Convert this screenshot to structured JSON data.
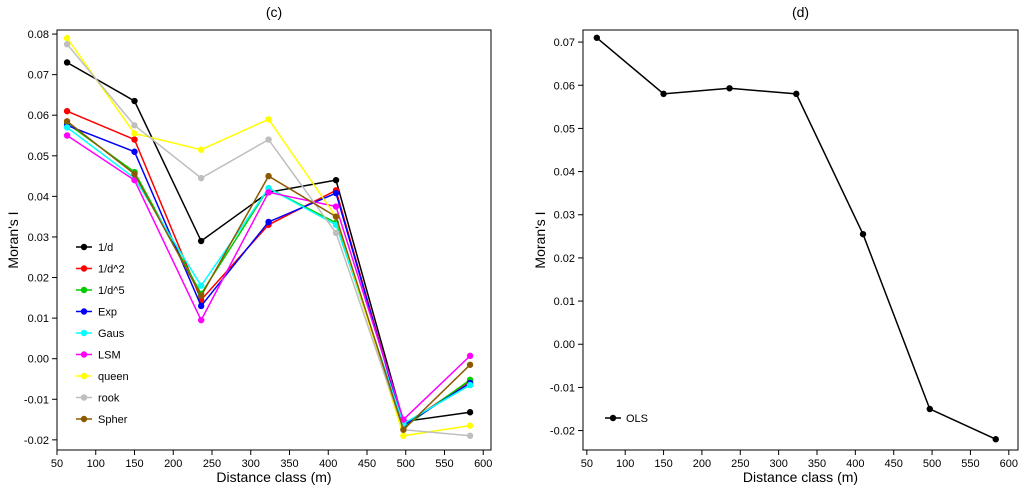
{
  "chart_data": [
    {
      "type": "line",
      "title": "(c)",
      "xlabel": "Distance class (m)",
      "ylabel": "Moran's I",
      "xlim": [
        50,
        610
      ],
      "ylim": [
        -0.0225,
        0.081
      ],
      "xticks": [
        50,
        100,
        150,
        200,
        250,
        300,
        350,
        400,
        450,
        500,
        550,
        600
      ],
      "xtick_labels": [
        "50",
        "100",
        "150",
        "200",
        "250",
        "300",
        "350",
        "400",
        "450",
        "500",
        "550",
        "600"
      ],
      "yticks": [
        -0.02,
        -0.01,
        0,
        0.01,
        0.02,
        0.03,
        0.04,
        0.05,
        0.06,
        0.07,
        0.08
      ],
      "ytick_labels": [
        "-0.02",
        "-0.01",
        "0.00",
        "0.01",
        "0.02",
        "0.03",
        "0.04",
        "0.05",
        "0.06",
        "0.07",
        "0.08"
      ],
      "legend_position": "left",
      "x": [
        63,
        150,
        236,
        323,
        410,
        497,
        583
      ],
      "series": [
        {
          "name": "1/d",
          "color": "#000000",
          "values": [
            0.073,
            0.0635,
            0.029,
            0.041,
            0.044,
            -0.0155,
            -0.0132
          ]
        },
        {
          "name": "1/d^2",
          "color": "#ff0000",
          "values": [
            0.061,
            0.054,
            0.0145,
            0.033,
            0.0415,
            -0.0165,
            -0.0055
          ]
        },
        {
          "name": "1/d^5",
          "color": "#00cc00",
          "values": [
            0.058,
            0.046,
            0.016,
            0.042,
            0.0335,
            -0.017,
            -0.0052
          ]
        },
        {
          "name": "Exp",
          "color": "#0000ff",
          "values": [
            0.0575,
            0.051,
            0.013,
            0.0337,
            0.0408,
            -0.0165,
            -0.006
          ]
        },
        {
          "name": "Gaus",
          "color": "#00ffff",
          "values": [
            0.057,
            0.0445,
            0.018,
            0.042,
            0.033,
            -0.016,
            -0.0065
          ]
        },
        {
          "name": "LSM",
          "color": "#ff00ff",
          "values": [
            0.055,
            0.044,
            0.0095,
            0.041,
            0.0375,
            -0.015,
            0.0007
          ]
        },
        {
          "name": "queen",
          "color": "#ffff00",
          "values": [
            0.079,
            0.0555,
            0.0515,
            0.059,
            0.035,
            -0.019,
            -0.0165
          ]
        },
        {
          "name": "rook",
          "color": "#bebebe",
          "values": [
            0.0775,
            0.0575,
            0.0445,
            0.054,
            0.031,
            -0.0175,
            -0.019
          ]
        },
        {
          "name": "Spher",
          "color": "#8b5a00",
          "values": [
            0.0585,
            0.0455,
            0.0155,
            0.045,
            0.035,
            -0.0175,
            -0.0015
          ]
        }
      ]
    },
    {
      "type": "line",
      "title": "(d)",
      "xlabel": "Distance class (m)",
      "ylabel": "Moran's I",
      "xlim": [
        45,
        612
      ],
      "ylim": [
        -0.0245,
        0.0728
      ],
      "xticks": [
        50,
        100,
        150,
        200,
        250,
        300,
        350,
        400,
        450,
        500,
        550,
        600
      ],
      "xtick_labels": [
        "50",
        "100",
        "150",
        "200",
        "250",
        "300",
        "350",
        "400",
        "450",
        "500",
        "550",
        "600"
      ],
      "yticks": [
        -0.02,
        -0.01,
        0,
        0.01,
        0.02,
        0.03,
        0.04,
        0.05,
        0.06,
        0.07
      ],
      "ytick_labels": [
        "-0.02",
        "-0.01",
        "0.00",
        "0.01",
        "0.02",
        "0.03",
        "0.04",
        "0.05",
        "0.06",
        "0.07"
      ],
      "legend_position": "bottom-left",
      "x": [
        63,
        150,
        236,
        323,
        410,
        497,
        583
      ],
      "series": [
        {
          "name": "OLS",
          "color": "#000000",
          "values": [
            0.071,
            0.058,
            0.0593,
            0.058,
            0.0255,
            -0.015,
            -0.022
          ]
        }
      ]
    }
  ]
}
